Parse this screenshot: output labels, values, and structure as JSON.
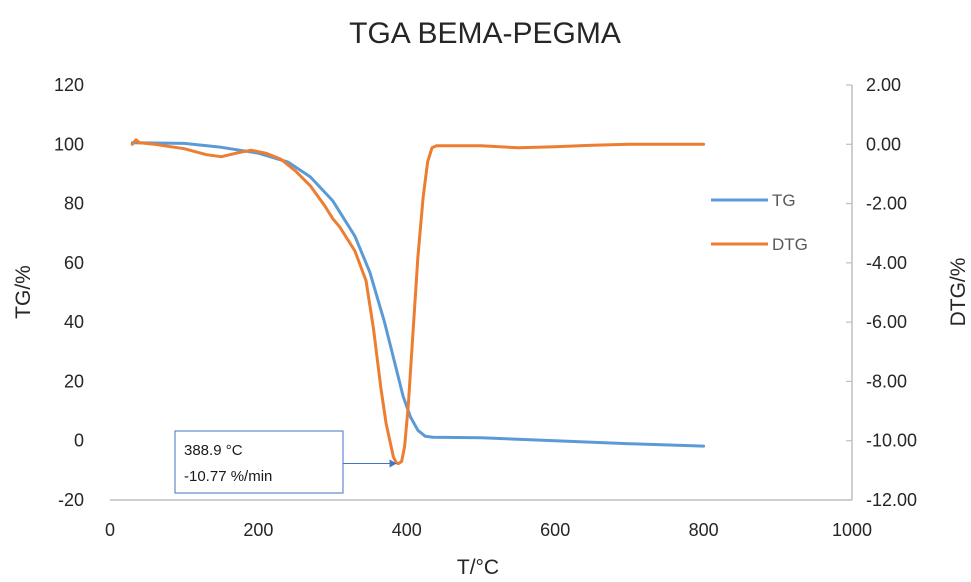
{
  "chart_data": {
    "type": "line",
    "title": "TGA BEMA-PEGMA",
    "xlabel": "T/°C",
    "ylabel": "TG/%",
    "y2label": "DTG/%",
    "xlim": [
      0,
      1000
    ],
    "ylim": [
      -20,
      120
    ],
    "y2lim": [
      -12,
      2
    ],
    "xticks": [
      "0",
      "200",
      "400",
      "600",
      "800",
      "1000"
    ],
    "yticks": [
      "-20",
      "0",
      "20",
      "40",
      "60",
      "80",
      "100",
      "120"
    ],
    "y2ticks": [
      "-12.00",
      "-10.00",
      "-8.00",
      "-6.00",
      "-4.00",
      "-2.00",
      "0.00",
      "2.00"
    ],
    "grid": false,
    "legend": "right",
    "series": [
      {
        "name": "TG",
        "axis": "left",
        "color": "#5b9bd5",
        "x": [
          30,
          100,
          150,
          200,
          240,
          270,
          300,
          330,
          350,
          370,
          385,
          395,
          405,
          415,
          425,
          435,
          500,
          600,
          700,
          800
        ],
        "y": [
          100.5,
          100.3,
          99.0,
          97.0,
          94.0,
          89.0,
          81.0,
          69.0,
          57.0,
          40.0,
          25.0,
          15.0,
          8.0,
          3.5,
          1.5,
          1.2,
          1.0,
          0.0,
          -1.0,
          -1.8
        ]
      },
      {
        "name": "DTG",
        "axis": "right",
        "color": "#ed7d31",
        "x": [
          30,
          35,
          40,
          60,
          100,
          130,
          150,
          170,
          190,
          210,
          230,
          250,
          270,
          290,
          300,
          310,
          330,
          345,
          355,
          365,
          372,
          378,
          382,
          386,
          389,
          393,
          397,
          402,
          408,
          415,
          422,
          428,
          434,
          440,
          460,
          500,
          550,
          600,
          650,
          700,
          750,
          800
        ],
        "y": [
          0.0,
          0.15,
          0.05,
          0.0,
          -0.15,
          -0.35,
          -0.42,
          -0.3,
          -0.2,
          -0.3,
          -0.5,
          -0.9,
          -1.4,
          -2.1,
          -2.5,
          -2.8,
          -3.6,
          -4.6,
          -6.2,
          -8.2,
          -9.4,
          -10.1,
          -10.55,
          -10.75,
          -10.77,
          -10.7,
          -10.2,
          -8.8,
          -6.5,
          -3.8,
          -1.8,
          -0.6,
          -0.12,
          -0.05,
          -0.05,
          -0.05,
          -0.12,
          -0.08,
          -0.03,
          0.0,
          0.0,
          0.0
        ]
      }
    ],
    "annotation": {
      "line1": "388.9 °C",
      "line2": "-10.77 %/min",
      "x": 388.9,
      "y": -10.77,
      "axis": "right"
    }
  },
  "colors": {
    "axis": "#bfbfbf",
    "text": "#262626",
    "annotation_border": "#4472c4"
  }
}
